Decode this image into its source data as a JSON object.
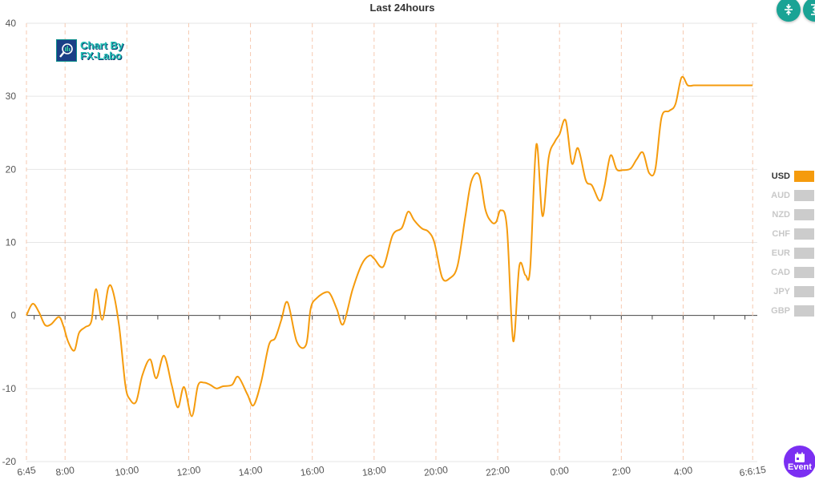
{
  "chart_data": {
    "type": "line",
    "title": "Last 24hours",
    "ylim": [
      -20,
      40
    ],
    "y_ticks": [
      "-20",
      "-10",
      "0",
      "10",
      "20",
      "30",
      "40"
    ],
    "x_ticks": [
      "6:45",
      "8:00",
      "10:00",
      "12:00",
      "14:00",
      "16:00",
      "18:00",
      "20:00",
      "22:00",
      "0:00",
      "2:00",
      "4:00",
      "6:6:15"
    ],
    "x_tick_hours": [
      6.75,
      8,
      10,
      12,
      14,
      16,
      18,
      20,
      22,
      24,
      26,
      28,
      30.25
    ],
    "x_range_hours": [
      6.75,
      30.4
    ],
    "series": [
      {
        "name": "USD",
        "color": "#f59b0d",
        "x_hours": [
          6.75,
          6.95,
          7.15,
          7.35,
          7.55,
          7.8,
          7.95,
          8.1,
          8.3,
          8.45,
          8.65,
          8.85,
          9.0,
          9.2,
          9.4,
          9.55,
          9.75,
          9.95,
          10.1,
          10.3,
          10.5,
          10.75,
          10.95,
          11.2,
          11.45,
          11.65,
          11.85,
          12.1,
          12.3,
          12.5,
          12.7,
          12.9,
          13.1,
          13.4,
          13.6,
          13.9,
          14.1,
          14.35,
          14.6,
          14.8,
          15.0,
          15.2,
          15.5,
          15.8,
          15.95,
          16.15,
          16.45,
          16.6,
          16.8,
          17.0,
          17.3,
          17.6,
          17.85,
          18.0,
          18.3,
          18.6,
          18.9,
          19.1,
          19.3,
          19.55,
          19.75,
          19.95,
          20.2,
          20.45,
          20.7,
          20.95,
          21.15,
          21.4,
          21.6,
          21.8,
          21.95,
          22.1,
          22.3,
          22.5,
          22.7,
          22.9,
          23.05,
          23.25,
          23.45,
          23.65,
          23.85,
          24.0,
          24.2,
          24.4,
          24.6,
          24.85,
          25.05,
          25.3,
          25.45,
          25.65,
          25.85,
          26.05,
          26.3,
          26.5,
          26.7,
          26.9,
          27.1,
          27.3,
          27.55,
          27.75,
          27.95,
          28.15,
          28.35,
          28.55,
          28.8,
          29.05,
          29.25,
          29.45,
          29.65,
          29.85,
          30.05,
          30.25
        ],
        "values": [
          0,
          1.6,
          0.5,
          -1.3,
          -1.2,
          -0.2,
          -1.5,
          -3.6,
          -4.8,
          -2.4,
          -1.6,
          -0.8,
          3.6,
          -0.6,
          3.8,
          3.3,
          -1.5,
          -9.5,
          -11.5,
          -11.8,
          -8.2,
          -6.0,
          -8.6,
          -5.5,
          -9.5,
          -12.6,
          -9.8,
          -13.8,
          -9.6,
          -9.2,
          -9.5,
          -10.0,
          -9.7,
          -9.5,
          -8.4,
          -10.8,
          -12.3,
          -9.0,
          -4.0,
          -3.1,
          -0.6,
          1.8,
          -3.6,
          -4.0,
          1.0,
          2.4,
          3.2,
          2.8,
          0.8,
          -1.2,
          3.5,
          7.0,
          8.2,
          7.8,
          6.7,
          11.0,
          12.0,
          14.2,
          13.0,
          11.9,
          11.5,
          10.0,
          5.2,
          5.1,
          6.8,
          13.5,
          18.4,
          19.2,
          14.5,
          12.8,
          12.8,
          14.4,
          12.0,
          -3.5,
          6.8,
          5.5,
          6.5,
          23.4,
          13.6,
          21.6,
          23.8,
          24.8,
          26.7,
          20.8,
          22.9,
          18.5,
          17.8,
          15.7,
          17.6,
          21.9,
          20.0,
          19.9,
          20.1,
          21.4,
          22.3,
          19.5,
          20.0,
          27.1,
          28.0,
          28.9,
          32.6,
          31.5,
          31.5,
          31.5,
          31.5,
          31.5,
          31.5,
          31.5,
          31.5,
          31.5,
          31.5,
          31.5
        ]
      }
    ],
    "legend": [
      {
        "label": "USD",
        "active": true
      },
      {
        "label": "AUD",
        "active": false
      },
      {
        "label": "NZD",
        "active": false
      },
      {
        "label": "CHF",
        "active": false
      },
      {
        "label": "EUR",
        "active": false
      },
      {
        "label": "CAD",
        "active": false
      },
      {
        "label": "JPY",
        "active": false
      },
      {
        "label": "GBP",
        "active": false
      }
    ],
    "legend_position": "right",
    "grid": true
  },
  "logo": {
    "line1": "Chart By",
    "line2": "FX-Labo"
  },
  "event_button": {
    "label": "Event",
    "icon": "calendar-icon"
  },
  "toolbar": {
    "icons": [
      "compress-vertical-icon",
      "expand-vertical-icon"
    ]
  },
  "colors": {
    "line": "#f59b0d",
    "vgrid": "#f6c9b0",
    "hgrid": "#e6e6e6",
    "fab": "#1aa395",
    "event": "#7b2ff2"
  }
}
